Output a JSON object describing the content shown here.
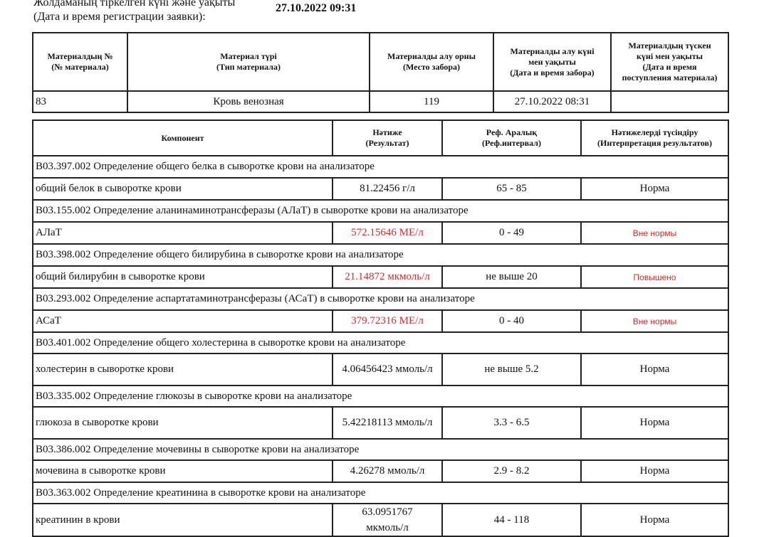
{
  "registration": {
    "label_kz": "Жолдаманың тіркелген күні және уақыты",
    "label_ru": "(Дата и время регистрации заявки):",
    "value": "27.10.2022 09:31"
  },
  "material_table": {
    "headers": [
      [
        "Материалдың №",
        "(№ материала)"
      ],
      [
        "Материал түрі",
        "(Тип материала)"
      ],
      [
        "Материалды алу орны",
        "(Место забора)"
      ],
      [
        "Материалды алу күні",
        "мен уақыты",
        "(Дата и время забора)"
      ],
      [
        "Материалдың түскен",
        "күні мен уақыты",
        "(Дата и время",
        "поступления материала)"
      ]
    ],
    "row": [
      "83",
      "Кровь венозная",
      "119",
      "27.10.2022 08:31",
      ""
    ]
  },
  "results_table": {
    "headers": [
      [
        "Компонент"
      ],
      [
        "Нәтиже",
        "(Результат)"
      ],
      [
        "Реф. Аралық",
        "(Реф.интервал)"
      ],
      [
        "Нәтижелерді түсіндіру",
        "(Интерпретация результатов)"
      ]
    ],
    "status_colors": {
      "normal": "#111111",
      "abnormal": "#d42a2a"
    },
    "sections": [
      {
        "title": "B03.397.002 Определение общего белка в сыворотке крови на анализаторе",
        "component": "общий белок в сыворотке крови",
        "result": "81.22456 г/л",
        "ref": "65 - 85",
        "interp": "Норма",
        "abnormal": false
      },
      {
        "title": "B03.155.002 Определение аланинаминотрансферазы (АЛаТ) в сыворотке крови на анализаторе",
        "component": "АЛаТ",
        "result": "572.15646 МЕ/л",
        "ref": "0 - 49",
        "interp": "Вне нормы",
        "abnormal": true
      },
      {
        "title": "B03.398.002 Определение общего билирубина в сыворотке крови на анализаторе",
        "component": "общий билирубин в сыворотке крови",
        "result": "21.14872 мкмоль/л",
        "ref": "не выше 20",
        "interp": "Повышено",
        "abnormal": true
      },
      {
        "title": "B03.293.002 Определение аспартатаминотрансферазы (АСаТ) в сыворотке крови на анализаторе",
        "component": "АСаТ",
        "result": "379.72316 МЕ/л",
        "ref": "0 - 40",
        "interp": "Вне нормы",
        "abnormal": true
      },
      {
        "title": "B03.401.002 Определение общего холестерина в сыворотке крови на анализаторе",
        "component": "холестерин в сыворотке крови",
        "result": "4.06456423 ммоль/л",
        "ref": "не выше 5.2",
        "interp": "Норма",
        "abnormal": false
      },
      {
        "title": "B03.335.002 Определение глюкозы в сыворотке крови на анализаторе",
        "component": "глюкоза в сыворотке крови",
        "result": "5.42218113 ммоль/л",
        "ref": "3.3 - 6.5",
        "interp": "Норма",
        "abnormal": false
      },
      {
        "title": "B03.386.002 Определение мочевины в сыворотке крови на анализаторе",
        "component": "мочевина в сыворотке крови",
        "result": "4.26278 ммоль/л",
        "ref": "2.9 - 8.2",
        "interp": "Норма",
        "abnormal": false
      },
      {
        "title": "B03.363.002 Определение креатинина в сыворотке крови на анализаторе",
        "component": "креатинин в крови",
        "result": "63.0951767 мкмоль/л",
        "ref": "44 - 118",
        "interp": "Норма",
        "abnormal": false
      }
    ]
  }
}
